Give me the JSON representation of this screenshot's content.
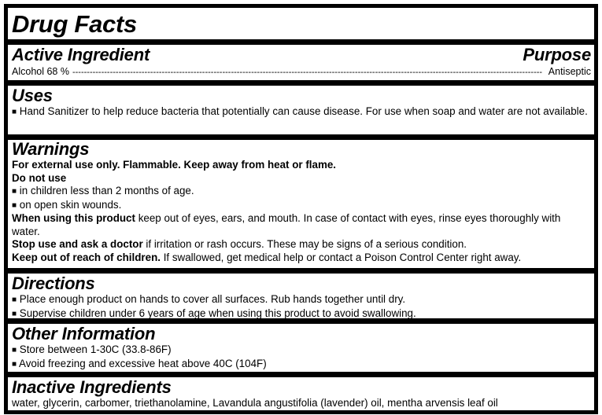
{
  "title": "Drug Facts",
  "active": {
    "heading": "Active Ingredient",
    "purpose_heading": "Purpose",
    "ingredient": "Alcohol 68 %",
    "purpose": "Antiseptic"
  },
  "uses": {
    "heading": "Uses",
    "items": [
      "Hand Sanitizer to help reduce bacteria that potentially can cause disease. For use when soap and water are not available."
    ]
  },
  "warnings": {
    "heading": "Warnings",
    "external": "For external use only. Flammable. Keep away from heat or flame.",
    "do_not_use": "Do not use",
    "do_not_use_items": [
      "in children less than 2 months of age.",
      "on open skin wounds."
    ],
    "when_using_lead": "When using this product",
    "when_using": " keep out of eyes, ears, and mouth. In case of contact with eyes, rinse eyes thoroughly with water.",
    "stop_lead": "Stop use and ask a doctor",
    "stop": " if irritation or rash occurs. These may be signs of a serious condition.",
    "keep_lead": "Keep out of reach of children.",
    "keep": " If swallowed, get medical help or contact a Poison Control Center right away."
  },
  "directions": {
    "heading": "Directions",
    "items": [
      "Place enough product on hands to cover all surfaces. Rub hands together until dry.",
      "Supervise children under 6 years of age when using this product to avoid swallowing."
    ]
  },
  "other": {
    "heading": "Other Information",
    "items": [
      "Store between 1-30C (33.8-86F)",
      "Avoid freezing and excessive heat above 40C (104F)"
    ]
  },
  "inactive": {
    "heading": "Inactive Ingredients",
    "text": "water, glycerin, carbomer, triethanolamine, Lavandula angustifolia (lavender) oil, mentha arvensis leaf oil"
  },
  "bullet": "■"
}
